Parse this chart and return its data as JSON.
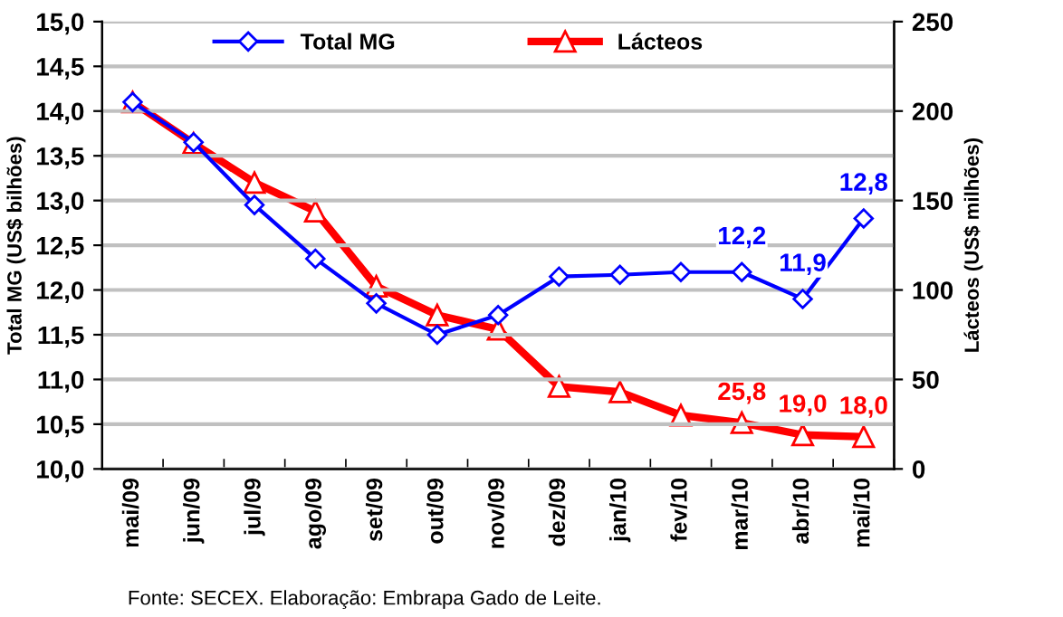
{
  "chart_data": {
    "type": "line",
    "categories": [
      "mai/09",
      "jun/09",
      "jul/09",
      "ago/09",
      "set/09",
      "out/09",
      "nov/09",
      "dez/09",
      "jan/10",
      "fev/10",
      "mar/10",
      "abr/10",
      "mai/10"
    ],
    "series": [
      {
        "name": "Total MG",
        "color": "#0000ff",
        "marker": "diamond",
        "values": [
          14.1,
          13.65,
          12.95,
          12.35,
          11.85,
          11.5,
          11.72,
          12.15,
          12.17,
          12.2,
          12.2,
          11.9,
          12.8
        ],
        "value_labels": [
          null,
          null,
          null,
          null,
          null,
          null,
          null,
          null,
          null,
          null,
          "12,2",
          "11,9",
          "12,8"
        ]
      },
      {
        "name": "Lácteos",
        "color": "#ff0000",
        "marker": "triangle",
        "axis": "y2",
        "values": [
          205,
          182,
          160,
          144,
          102,
          86,
          78,
          46,
          43,
          30,
          25.8,
          19.0,
          18.0
        ],
        "value_labels": [
          null,
          null,
          null,
          null,
          null,
          null,
          null,
          null,
          null,
          null,
          "25,8",
          "19,0",
          "18,0"
        ]
      }
    ],
    "ylabel": "Total MG (US$ bilhões)",
    "y2label": "Lácteos (US$ milhões)",
    "ylim": [
      10,
      15
    ],
    "yticks": [
      {
        "value": 10,
        "label": "10,0"
      },
      {
        "value": 10.5,
        "label": "10,5"
      },
      {
        "value": 11,
        "label": "11,0"
      },
      {
        "value": 11.5,
        "label": "11,5"
      },
      {
        "value": 12,
        "label": "12,0"
      },
      {
        "value": 12.5,
        "label": "12,5"
      },
      {
        "value": 13,
        "label": "13,0"
      },
      {
        "value": 13.5,
        "label": "13,5"
      },
      {
        "value": 14,
        "label": "14,0"
      },
      {
        "value": 14.5,
        "label": "14,5"
      },
      {
        "value": 15,
        "label": "15,0"
      }
    ],
    "y2lim": [
      0,
      250
    ],
    "y2ticks": [
      0,
      50,
      100,
      150,
      200,
      250
    ],
    "grid": "y",
    "legend": "top",
    "line_style": "solid",
    "annotations": [
      "Fonte: SECEX. Elaboração: Embrapa Gado de Leite."
    ]
  }
}
